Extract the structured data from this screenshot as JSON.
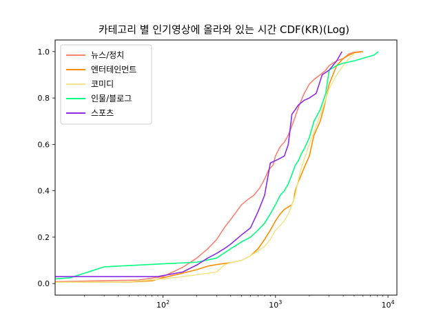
{
  "chart_data": {
    "type": "line",
    "title": "카테고리 별 인기영상에 올라와 있는 시간 CDF(KR)(Log)",
    "xlabel": "",
    "ylabel": "",
    "xscale": "log",
    "xlim": [
      11,
      12000
    ],
    "ylim": [
      -0.05,
      1.05
    ],
    "x_ticks": [
      {
        "base": "10",
        "exp": "2",
        "value": 100
      },
      {
        "base": "10",
        "exp": "3",
        "value": 1000
      },
      {
        "base": "10",
        "exp": "4",
        "value": 10000
      }
    ],
    "y_ticks": [
      "0.0",
      "0.2",
      "0.4",
      "0.6",
      "0.8",
      "1.0"
    ],
    "y_tick_values": [
      0,
      0.2,
      0.4,
      0.6,
      0.8,
      1.0
    ],
    "legend_position": "top-left",
    "series": [
      {
        "name": "뉴스/정치",
        "color": "#fa8072",
        "x": [
          11,
          60,
          100,
          150,
          200,
          250,
          300,
          350,
          420,
          500,
          560,
          640,
          720,
          800,
          870,
          950,
          1000,
          1100,
          1200,
          1300,
          1400,
          1500,
          1600,
          1800,
          2000,
          2200,
          2500,
          2800,
          3000,
          3500,
          4000,
          4500,
          5000,
          5800
        ],
        "y": [
          0.008,
          0.015,
          0.03,
          0.07,
          0.11,
          0.15,
          0.19,
          0.24,
          0.29,
          0.34,
          0.36,
          0.38,
          0.41,
          0.45,
          0.49,
          0.51,
          0.55,
          0.59,
          0.61,
          0.64,
          0.68,
          0.72,
          0.76,
          0.82,
          0.86,
          0.88,
          0.9,
          0.92,
          0.94,
          0.96,
          0.97,
          0.99,
          0.997,
          1.0
        ]
      },
      {
        "name": "엔터테인먼트",
        "color": "#ff8c00",
        "x": [
          11,
          50,
          80,
          100,
          150,
          200,
          250,
          300,
          400,
          500,
          600,
          700,
          800,
          900,
          1000,
          1100,
          1200,
          1300,
          1400,
          1450,
          1500,
          1600,
          1700,
          1800,
          2000,
          2200,
          2500,
          2700,
          3000,
          3500,
          4000,
          4500,
          5000,
          6000
        ],
        "y": [
          0.006,
          0.007,
          0.012,
          0.025,
          0.045,
          0.06,
          0.075,
          0.082,
          0.09,
          0.1,
          0.12,
          0.15,
          0.19,
          0.23,
          0.27,
          0.3,
          0.32,
          0.33,
          0.34,
          0.36,
          0.4,
          0.44,
          0.47,
          0.5,
          0.55,
          0.64,
          0.7,
          0.76,
          0.86,
          0.94,
          0.97,
          0.985,
          0.995,
          1.0
        ]
      },
      {
        "name": "코미디",
        "color": "#f0e68c",
        "x": [
          11,
          50,
          100,
          150,
          200,
          300,
          350,
          400,
          500,
          600,
          700,
          800,
          900,
          1000,
          1100,
          1200,
          1300,
          1400,
          1500,
          1600,
          1700,
          2000,
          2300,
          2600,
          3000,
          3500,
          4000,
          4500,
          5000
        ],
        "y": [
          0.005,
          0.008,
          0.02,
          0.03,
          0.038,
          0.05,
          0.08,
          0.09,
          0.1,
          0.12,
          0.14,
          0.16,
          0.19,
          0.23,
          0.25,
          0.27,
          0.3,
          0.34,
          0.38,
          0.45,
          0.5,
          0.6,
          0.68,
          0.75,
          0.84,
          0.9,
          0.94,
          0.97,
          0.99
        ]
      },
      {
        "name": "인물/블로그",
        "color": "#00ff7f",
        "x": [
          11,
          15,
          30,
          100,
          200,
          300,
          400,
          500,
          600,
          700,
          800,
          900,
          1000,
          1100,
          1200,
          1300,
          1400,
          1500,
          1600,
          1700,
          1800,
          2000,
          2200,
          2500,
          2800,
          3000,
          3500,
          4000,
          5000,
          7500,
          8200
        ],
        "y": [
          0.02,
          0.025,
          0.072,
          0.085,
          0.092,
          0.11,
          0.15,
          0.18,
          0.2,
          0.23,
          0.26,
          0.3,
          0.34,
          0.38,
          0.4,
          0.43,
          0.47,
          0.51,
          0.53,
          0.56,
          0.58,
          0.63,
          0.7,
          0.75,
          0.82,
          0.92,
          0.94,
          0.95,
          0.96,
          0.985,
          1.0
        ]
      },
      {
        "name": "스포츠",
        "color": "#8a2be2",
        "x": [
          11,
          90,
          150,
          200,
          250,
          300,
          350,
          400,
          500,
          600,
          700,
          800,
          900,
          1000,
          1100,
          1200,
          1300,
          1400,
          1500,
          1600,
          1800,
          2000,
          2300,
          2600,
          3000,
          3500,
          3900
        ],
        "y": [
          0.03,
          0.03,
          0.05,
          0.08,
          0.11,
          0.13,
          0.15,
          0.17,
          0.21,
          0.24,
          0.31,
          0.38,
          0.52,
          0.53,
          0.54,
          0.55,
          0.6,
          0.73,
          0.75,
          0.77,
          0.79,
          0.8,
          0.82,
          0.9,
          0.92,
          0.96,
          1.0
        ]
      }
    ]
  }
}
